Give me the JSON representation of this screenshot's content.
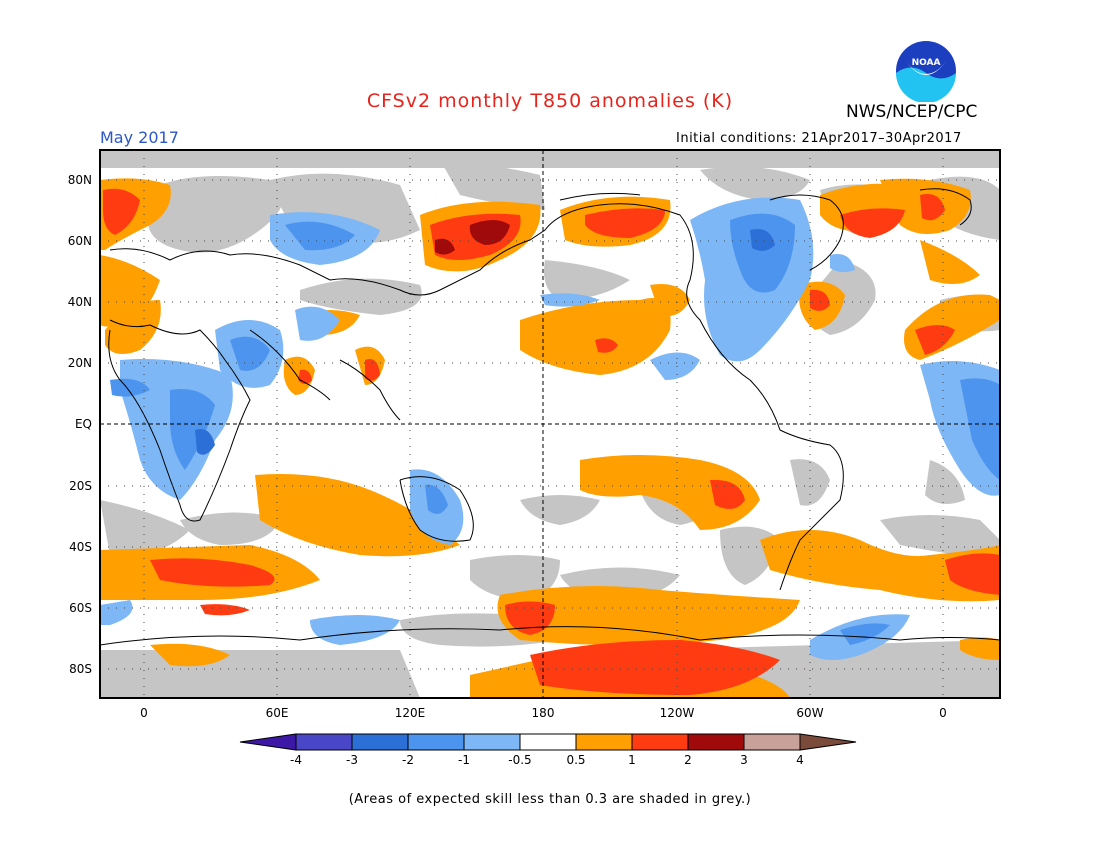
{
  "title": "CFSv2 monthly T850 anomalies (K)",
  "month": "May 2017",
  "agency": "NWS/NCEP/CPC",
  "logo_text": "NOAA",
  "initial_conditions": "Initial conditions: 21Apr2017–30Apr2017",
  "note": "(Areas of expected skill less than 0.3 are shaded in grey.)",
  "lat_labels": [
    "80N",
    "60N",
    "40N",
    "20N",
    "EQ",
    "20S",
    "40S",
    "60S",
    "80S"
  ],
  "lon_labels": [
    "0",
    "60E",
    "120E",
    "180",
    "120W",
    "60W",
    "0"
  ],
  "colorbar": {
    "tick_labels": [
      "-4",
      "-3",
      "-2",
      "-1",
      "-0.5",
      "0.5",
      "1",
      "2",
      "3",
      "4"
    ],
    "colors": [
      "#3d18a6",
      "#4a46c8",
      "#2c6fd6",
      "#4d94ef",
      "#7db7f5",
      "#ffffff",
      "#ff9f00",
      "#ff3b12",
      "#a10a0a",
      "#c8a198",
      "#7a4a3a"
    ]
  },
  "colors": {
    "grey_low_skill": "#c5c5c5",
    "title_red": "#e8231b",
    "month_blue": "#2b57c9"
  }
}
